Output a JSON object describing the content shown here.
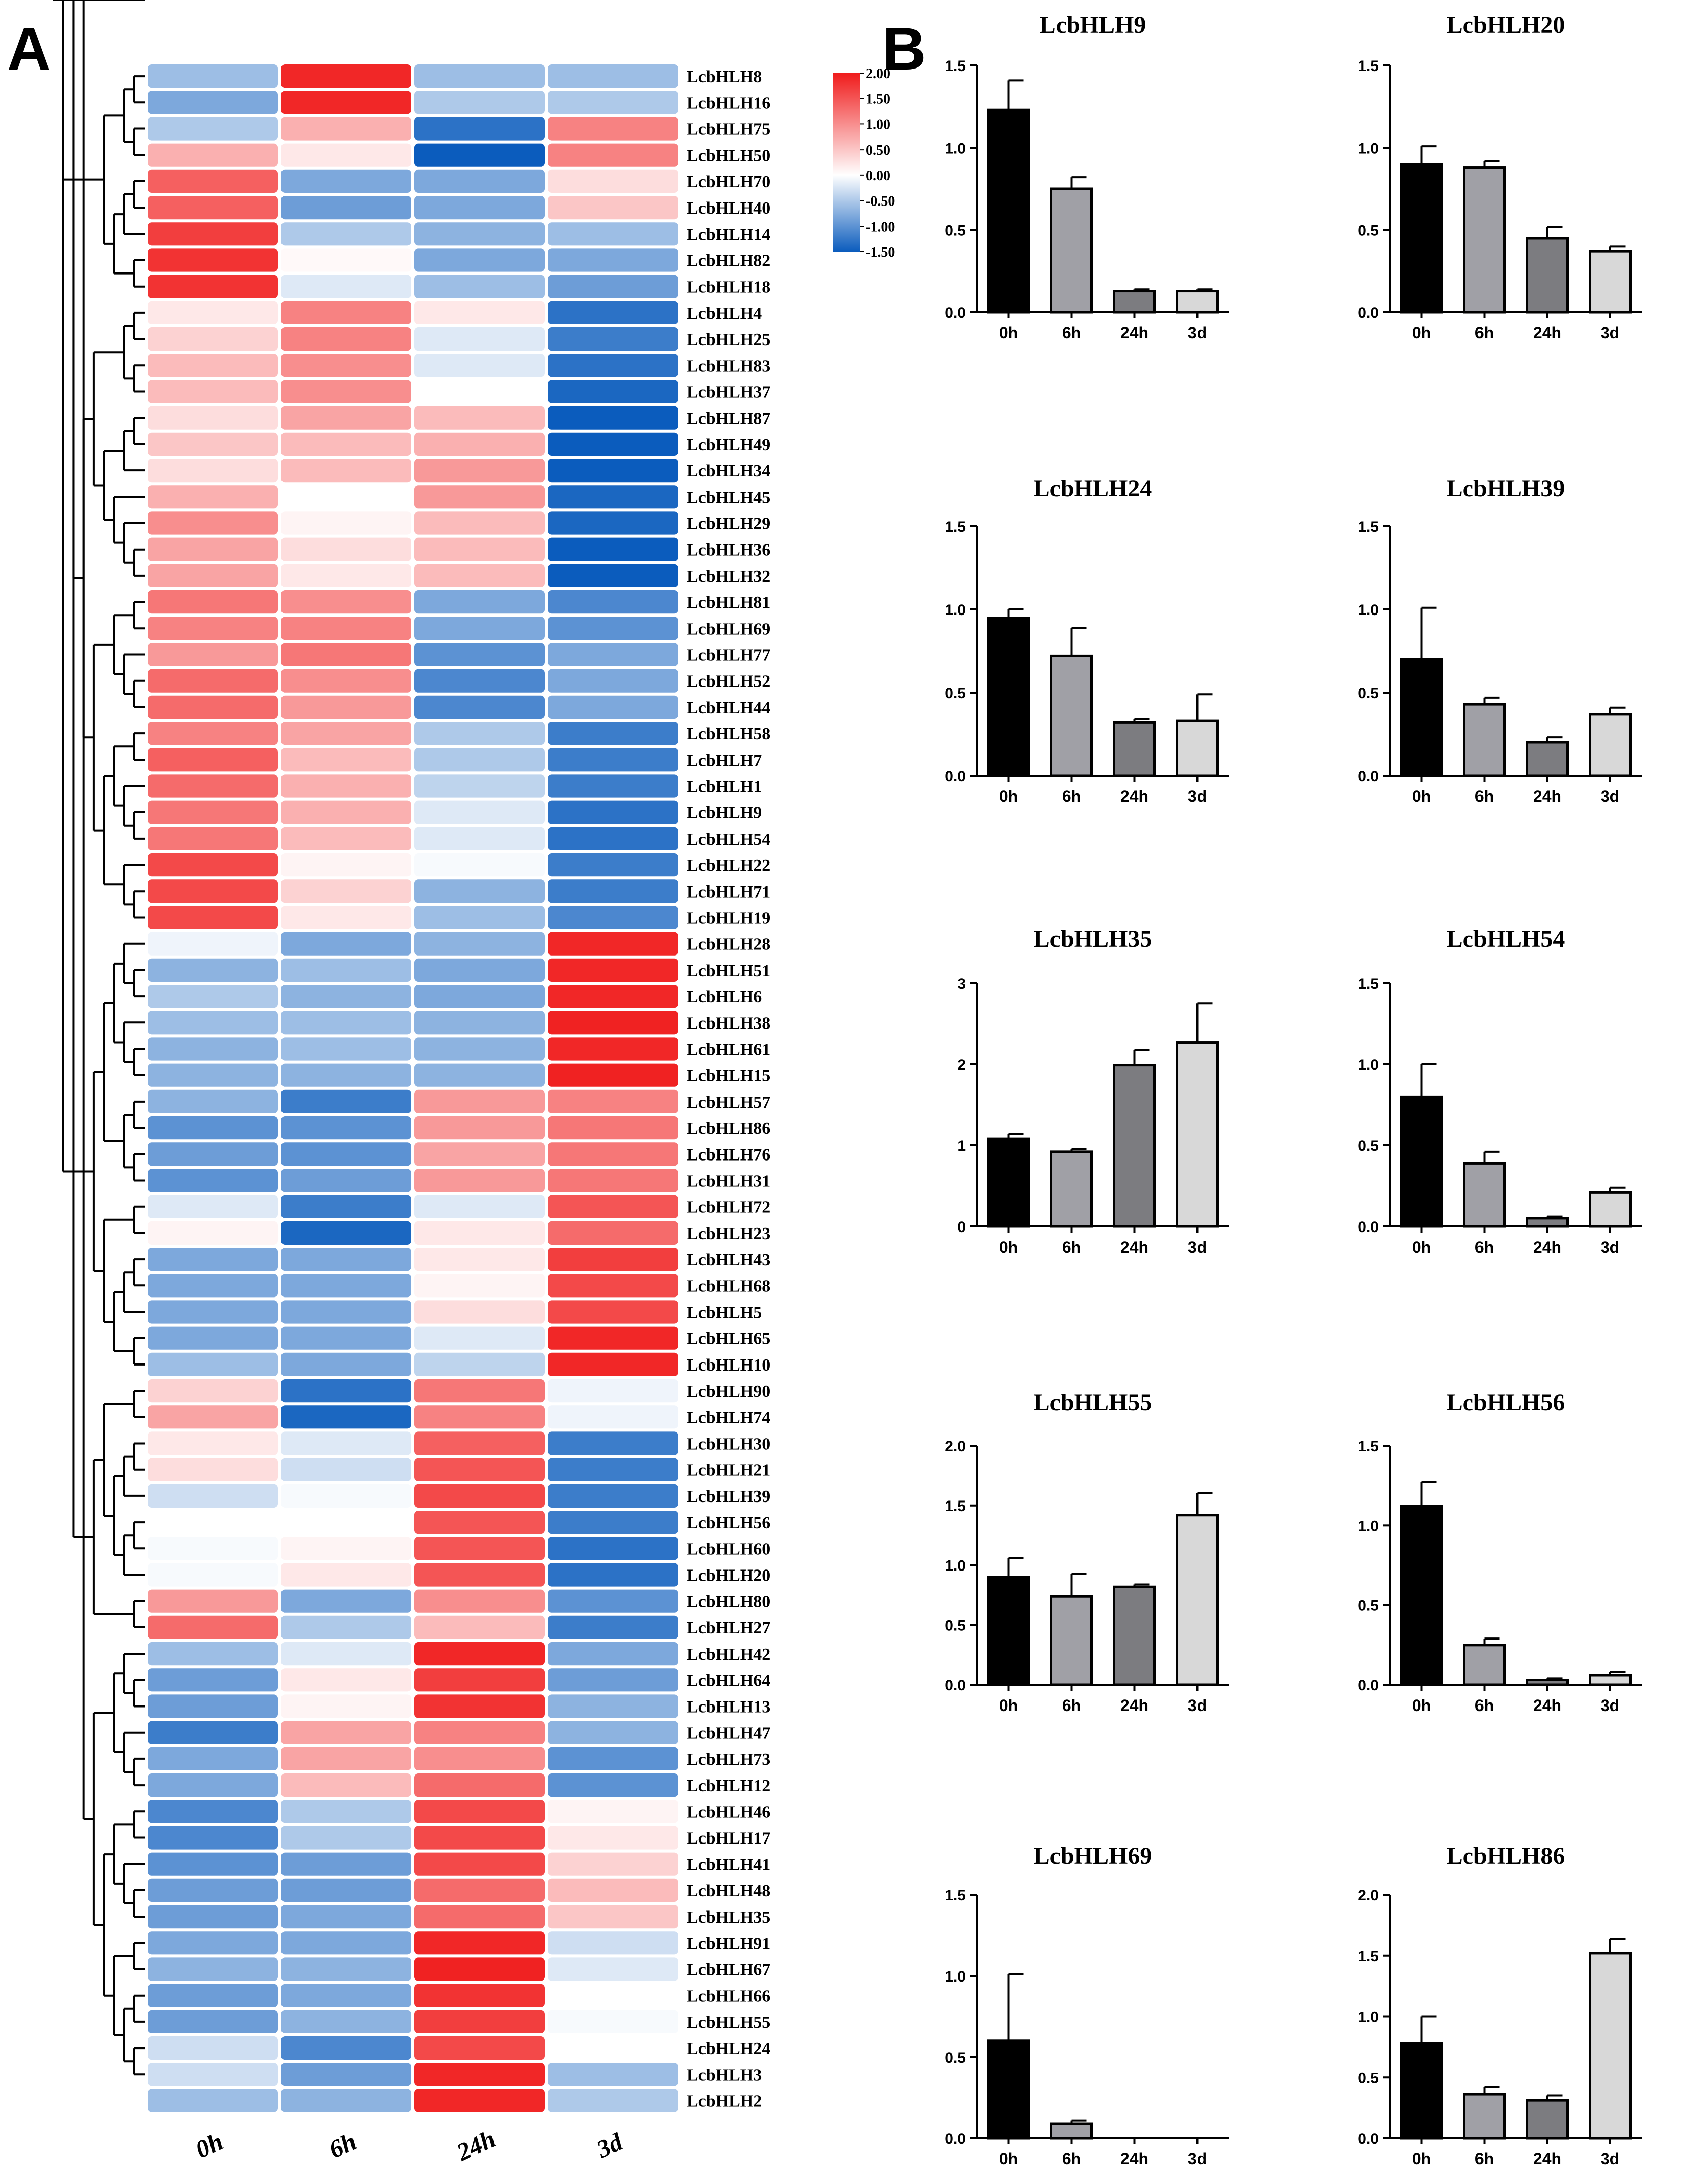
{
  "panel_labels": {
    "a": "A",
    "b": "B"
  },
  "colors": {
    "high": "#f01c1c",
    "mid": "#ffffff",
    "low": "#0b5cbd",
    "bar_0h": "#000000",
    "bar_6h": "#a0a0a6",
    "bar_24h": "#7c7c80",
    "bar_3d": "#d8d8d8"
  },
  "chart_data": [
    {
      "type": "heatmap",
      "title": "",
      "columns": [
        "0h",
        "6h",
        "24h",
        "3d"
      ],
      "colorbar": {
        "min": -1.5,
        "max": 2.0,
        "ticks": [
          "2.00",
          "1.50",
          "1.00",
          "0.50",
          "0.00",
          "-0.50",
          "-1.00",
          "-1.50"
        ],
        "tick_values": [
          2.0,
          1.5,
          1.0,
          0.5,
          0.0,
          -0.5,
          -1.0,
          -1.5
        ]
      },
      "dendrogram": "hierarchical clustering tree on rows (left)",
      "rows": [
        {
          "gene": "LcbHLH8",
          "values": [
            -0.6,
            1.9,
            -0.6,
            -0.6
          ]
        },
        {
          "gene": "LcbHLH16",
          "values": [
            -0.8,
            1.9,
            -0.5,
            -0.5
          ]
        },
        {
          "gene": "LcbHLH75",
          "values": [
            -0.5,
            0.7,
            -1.3,
            1.1
          ]
        },
        {
          "gene": "LcbHLH50",
          "values": [
            0.7,
            0.2,
            -1.5,
            1.1
          ]
        },
        {
          "gene": "LcbHLH70",
          "values": [
            1.4,
            -0.8,
            -0.8,
            0.3
          ]
        },
        {
          "gene": "LcbHLH40",
          "values": [
            1.4,
            -0.9,
            -0.8,
            0.5
          ]
        },
        {
          "gene": "LcbHLH14",
          "values": [
            1.7,
            -0.5,
            -0.7,
            -0.6
          ]
        },
        {
          "gene": "LcbHLH82",
          "values": [
            1.8,
            0.05,
            -0.8,
            -0.8
          ]
        },
        {
          "gene": "LcbHLH18",
          "values": [
            1.8,
            -0.2,
            -0.6,
            -0.9
          ]
        },
        {
          "gene": "LcbHLH4",
          "values": [
            0.2,
            1.1,
            0.2,
            -1.3
          ]
        },
        {
          "gene": "LcbHLH25",
          "values": [
            0.4,
            1.1,
            -0.2,
            -1.2
          ]
        },
        {
          "gene": "LcbHLH83",
          "values": [
            0.6,
            1.0,
            -0.2,
            -1.3
          ]
        },
        {
          "gene": "LcbHLH37",
          "values": [
            0.6,
            1.0,
            0.0,
            -1.4
          ]
        },
        {
          "gene": "LcbHLH87",
          "values": [
            0.3,
            0.8,
            0.6,
            -1.5
          ]
        },
        {
          "gene": "LcbHLH49",
          "values": [
            0.5,
            0.6,
            0.7,
            -1.5
          ]
        },
        {
          "gene": "LcbHLH34",
          "values": [
            0.3,
            0.6,
            0.9,
            -1.5
          ]
        },
        {
          "gene": "LcbHLH45",
          "values": [
            0.7,
            0.0,
            0.9,
            -1.4
          ]
        },
        {
          "gene": "LcbHLH29",
          "values": [
            1.0,
            0.1,
            0.6,
            -1.4
          ]
        },
        {
          "gene": "LcbHLH36",
          "values": [
            0.8,
            0.3,
            0.6,
            -1.5
          ]
        },
        {
          "gene": "LcbHLH32",
          "values": [
            0.8,
            0.2,
            0.6,
            -1.5
          ]
        },
        {
          "gene": "LcbHLH81",
          "values": [
            1.2,
            1.0,
            -0.8,
            -1.1
          ]
        },
        {
          "gene": "LcbHLH69",
          "values": [
            1.1,
            1.1,
            -0.8,
            -1.0
          ]
        },
        {
          "gene": "LcbHLH77",
          "values": [
            0.9,
            1.2,
            -1.0,
            -0.8
          ]
        },
        {
          "gene": "LcbHLH52",
          "values": [
            1.3,
            1.0,
            -1.1,
            -0.8
          ]
        },
        {
          "gene": "LcbHLH44",
          "values": [
            1.3,
            0.9,
            -1.1,
            -0.8
          ]
        },
        {
          "gene": "LcbHLH58",
          "values": [
            1.1,
            0.8,
            -0.5,
            -1.2
          ]
        },
        {
          "gene": "LcbHLH7",
          "values": [
            1.4,
            0.6,
            -0.5,
            -1.2
          ]
        },
        {
          "gene": "LcbHLH1",
          "values": [
            1.3,
            0.7,
            -0.4,
            -1.2
          ]
        },
        {
          "gene": "LcbHLH9",
          "values": [
            1.2,
            0.7,
            -0.2,
            -1.3
          ]
        },
        {
          "gene": "LcbHLH54",
          "values": [
            1.2,
            0.6,
            -0.2,
            -1.3
          ]
        },
        {
          "gene": "LcbHLH22",
          "values": [
            1.6,
            0.1,
            -0.05,
            -1.2
          ]
        },
        {
          "gene": "LcbHLH71",
          "values": [
            1.6,
            0.4,
            -0.7,
            -1.2
          ]
        },
        {
          "gene": "LcbHLH19",
          "values": [
            1.6,
            0.2,
            -0.6,
            -1.1
          ]
        },
        {
          "gene": "LcbHLH28",
          "values": [
            -0.1,
            -0.8,
            -0.7,
            1.9
          ]
        },
        {
          "gene": "LcbHLH51",
          "values": [
            -0.7,
            -0.6,
            -0.8,
            1.9
          ]
        },
        {
          "gene": "LcbHLH6",
          "values": [
            -0.5,
            -0.7,
            -0.8,
            1.9
          ]
        },
        {
          "gene": "LcbHLH38",
          "values": [
            -0.6,
            -0.6,
            -0.7,
            1.95
          ]
        },
        {
          "gene": "LcbHLH61",
          "values": [
            -0.7,
            -0.6,
            -0.7,
            1.9
          ]
        },
        {
          "gene": "LcbHLH15",
          "values": [
            -0.7,
            -0.7,
            -0.7,
            1.95
          ]
        },
        {
          "gene": "LcbHLH57",
          "values": [
            -0.7,
            -1.2,
            0.9,
            1.1
          ]
        },
        {
          "gene": "LcbHLH86",
          "values": [
            -1.0,
            -1.0,
            0.9,
            1.2
          ]
        },
        {
          "gene": "LcbHLH76",
          "values": [
            -0.9,
            -1.0,
            0.8,
            1.2
          ]
        },
        {
          "gene": "LcbHLH31",
          "values": [
            -1.0,
            -0.9,
            0.9,
            1.2
          ]
        },
        {
          "gene": "LcbHLH72",
          "values": [
            -0.2,
            -1.2,
            -0.2,
            1.5
          ]
        },
        {
          "gene": "LcbHLH23",
          "values": [
            0.1,
            -1.4,
            0.2,
            1.3
          ]
        },
        {
          "gene": "LcbHLH43",
          "values": [
            -0.8,
            -0.8,
            0.2,
            1.7
          ]
        },
        {
          "gene": "LcbHLH68",
          "values": [
            -0.8,
            -0.8,
            0.1,
            1.6
          ]
        },
        {
          "gene": "LcbHLH5",
          "values": [
            -0.8,
            -0.8,
            0.3,
            1.6
          ]
        },
        {
          "gene": "LcbHLH65",
          "values": [
            -0.8,
            -0.8,
            -0.2,
            1.9
          ]
        },
        {
          "gene": "LcbHLH10",
          "values": [
            -0.6,
            -0.8,
            -0.4,
            1.9
          ]
        },
        {
          "gene": "LcbHLH90",
          "values": [
            0.4,
            -1.3,
            1.2,
            -0.1
          ]
        },
        {
          "gene": "LcbHLH74",
          "values": [
            0.8,
            -1.4,
            1.1,
            -0.1
          ]
        },
        {
          "gene": "LcbHLH30",
          "values": [
            0.2,
            -0.2,
            1.4,
            -1.2
          ]
        },
        {
          "gene": "LcbHLH21",
          "values": [
            0.3,
            -0.3,
            1.5,
            -1.2
          ]
        },
        {
          "gene": "LcbHLH39",
          "values": [
            -0.3,
            -0.05,
            1.6,
            -1.2
          ]
        },
        {
          "gene": "LcbHLH56",
          "values": [
            0.0,
            0.0,
            1.5,
            -1.2
          ]
        },
        {
          "gene": "LcbHLH60",
          "values": [
            -0.05,
            0.1,
            1.5,
            -1.3
          ]
        },
        {
          "gene": "LcbHLH20",
          "values": [
            -0.05,
            0.2,
            1.5,
            -1.3
          ]
        },
        {
          "gene": "LcbHLH80",
          "values": [
            0.9,
            -0.8,
            1.0,
            -1.0
          ]
        },
        {
          "gene": "LcbHLH27",
          "values": [
            1.3,
            -0.5,
            0.6,
            -1.2
          ]
        },
        {
          "gene": "LcbHLH42",
          "values": [
            -0.6,
            -0.2,
            1.9,
            -0.8
          ]
        },
        {
          "gene": "LcbHLH64",
          "values": [
            -0.9,
            0.2,
            1.7,
            -0.9
          ]
        },
        {
          "gene": "LcbHLH13",
          "values": [
            -0.9,
            0.1,
            1.8,
            -0.7
          ]
        },
        {
          "gene": "LcbHLH47",
          "values": [
            -1.2,
            0.8,
            1.1,
            -0.7
          ]
        },
        {
          "gene": "LcbHLH73",
          "values": [
            -0.8,
            0.8,
            1.0,
            -1.0
          ]
        },
        {
          "gene": "LcbHLH12",
          "values": [
            -0.8,
            0.6,
            1.3,
            -1.0
          ]
        },
        {
          "gene": "LcbHLH46",
          "values": [
            -1.1,
            -0.5,
            1.6,
            0.1
          ]
        },
        {
          "gene": "LcbHLH17",
          "values": [
            -1.1,
            -0.5,
            1.6,
            0.2
          ]
        },
        {
          "gene": "LcbHLH41",
          "values": [
            -1.0,
            -0.9,
            1.6,
            0.4
          ]
        },
        {
          "gene": "LcbHLH48",
          "values": [
            -0.9,
            -0.9,
            1.3,
            0.6
          ]
        },
        {
          "gene": "LcbHLH35",
          "values": [
            -0.9,
            -0.8,
            1.3,
            0.5
          ]
        },
        {
          "gene": "LcbHLH91",
          "values": [
            -0.8,
            -0.8,
            1.9,
            -0.3
          ]
        },
        {
          "gene": "LcbHLH67",
          "values": [
            -0.7,
            -0.7,
            1.95,
            -0.2
          ]
        },
        {
          "gene": "LcbHLH66",
          "values": [
            -0.9,
            -0.8,
            1.8,
            0.0
          ]
        },
        {
          "gene": "LcbHLH55",
          "values": [
            -0.9,
            -0.7,
            1.7,
            -0.05
          ]
        },
        {
          "gene": "LcbHLH24",
          "values": [
            -0.3,
            -1.1,
            1.6,
            0.0
          ]
        },
        {
          "gene": "LcbHLH3",
          "values": [
            -0.3,
            -0.9,
            1.9,
            -0.6
          ]
        },
        {
          "gene": "LcbHLH2",
          "values": [
            -0.6,
            -0.7,
            1.9,
            -0.5
          ]
        }
      ]
    },
    {
      "type": "bar",
      "title": "LcbHLH9",
      "categories": [
        "0h",
        "6h",
        "24h",
        "3d"
      ],
      "values": [
        1.23,
        0.75,
        0.13,
        0.13
      ],
      "errors": [
        0.18,
        0.07,
        0.01,
        0.01
      ],
      "ylim": [
        0,
        1.5
      ],
      "yticks": [
        "0.0",
        "0.5",
        "1.0",
        "1.5"
      ]
    },
    {
      "type": "bar",
      "title": "LcbHLH20",
      "categories": [
        "0h",
        "6h",
        "24h",
        "3d"
      ],
      "values": [
        0.9,
        0.88,
        0.45,
        0.37
      ],
      "errors": [
        0.11,
        0.04,
        0.07,
        0.03
      ],
      "ylim": [
        0,
        1.5
      ],
      "yticks": [
        "0.0",
        "0.5",
        "1.0",
        "1.5"
      ]
    },
    {
      "type": "bar",
      "title": "LcbHLH24",
      "categories": [
        "0h",
        "6h",
        "24h",
        "3d"
      ],
      "values": [
        0.95,
        0.72,
        0.32,
        0.33
      ],
      "errors": [
        0.05,
        0.17,
        0.02,
        0.16
      ],
      "ylim": [
        0,
        1.5
      ],
      "yticks": [
        "0.0",
        "0.5",
        "1.0",
        "1.5"
      ]
    },
    {
      "type": "bar",
      "title": "LcbHLH39",
      "categories": [
        "0h",
        "6h",
        "24h",
        "3d"
      ],
      "values": [
        0.7,
        0.43,
        0.2,
        0.37
      ],
      "errors": [
        0.31,
        0.04,
        0.03,
        0.04
      ],
      "ylim": [
        0,
        1.5
      ],
      "yticks": [
        "0.0",
        "0.5",
        "1.0",
        "1.5"
      ]
    },
    {
      "type": "bar",
      "title": "LcbHLH35",
      "categories": [
        "0h",
        "6h",
        "24h",
        "3d"
      ],
      "values": [
        1.08,
        0.92,
        1.99,
        2.27
      ],
      "errors": [
        0.06,
        0.03,
        0.19,
        0.48
      ],
      "ylim": [
        0,
        3
      ],
      "yticks": [
        "0",
        "1",
        "2",
        "3"
      ]
    },
    {
      "type": "bar",
      "title": "LcbHLH54",
      "categories": [
        "0h",
        "6h",
        "24h",
        "3d"
      ],
      "values": [
        0.8,
        0.39,
        0.05,
        0.21
      ],
      "errors": [
        0.2,
        0.07,
        0.01,
        0.03
      ],
      "ylim": [
        0,
        1.5
      ],
      "yticks": [
        "0.0",
        "0.5",
        "1.0",
        "1.5"
      ]
    },
    {
      "type": "bar",
      "title": "LcbHLH55",
      "categories": [
        "0h",
        "6h",
        "24h",
        "3d"
      ],
      "values": [
        0.9,
        0.74,
        0.82,
        1.42
      ],
      "errors": [
        0.16,
        0.19,
        0.02,
        0.18
      ],
      "ylim": [
        0,
        2.0
      ],
      "yticks": [
        "0.0",
        "0.5",
        "1.0",
        "1.5",
        "2.0"
      ]
    },
    {
      "type": "bar",
      "title": "LcbHLH56",
      "categories": [
        "0h",
        "6h",
        "24h",
        "3d"
      ],
      "values": [
        1.12,
        0.25,
        0.03,
        0.06
      ],
      "errors": [
        0.15,
        0.04,
        0.01,
        0.02
      ],
      "ylim": [
        0,
        1.5
      ],
      "yticks": [
        "0.0",
        "0.5",
        "1.0",
        "1.5"
      ]
    },
    {
      "type": "bar",
      "title": "LcbHLH69",
      "categories": [
        "0h",
        "6h",
        "24h",
        "3d"
      ],
      "values": [
        0.6,
        0.09,
        0.0,
        0.0
      ],
      "errors": [
        0.41,
        0.02,
        0.0,
        0.0
      ],
      "ylim": [
        0,
        1.5
      ],
      "yticks": [
        "0.0",
        "0.5",
        "1.0",
        "1.5"
      ]
    },
    {
      "type": "bar",
      "title": "LcbHLH86",
      "categories": [
        "0h",
        "6h",
        "24h",
        "3d"
      ],
      "values": [
        0.78,
        0.36,
        0.31,
        1.52
      ],
      "errors": [
        0.22,
        0.06,
        0.04,
        0.12
      ],
      "ylim": [
        0,
        2.0
      ],
      "yticks": [
        "0.0",
        "0.5",
        "1.0",
        "1.5",
        "2.0"
      ]
    }
  ]
}
